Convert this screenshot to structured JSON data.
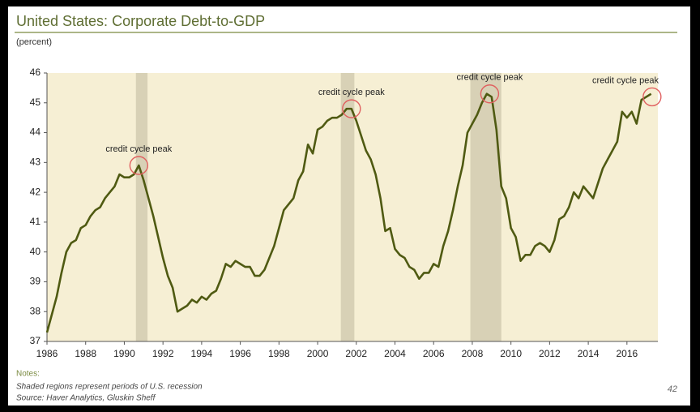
{
  "chart_data": {
    "type": "line",
    "title": "United States: Corporate Debt-to-GDP",
    "y_label": "(percent)",
    "xlim": [
      1986,
      2017.6
    ],
    "xticks": [
      1986,
      1988,
      1990,
      1992,
      1994,
      1996,
      1998,
      2000,
      2002,
      2004,
      2006,
      2008,
      2010,
      2012,
      2014,
      2016
    ],
    "ylim": [
      37,
      46
    ],
    "yticks": [
      37,
      38,
      39,
      40,
      41,
      42,
      43,
      44,
      45,
      46
    ],
    "recessions": [
      [
        1990.6,
        1991.2
      ],
      [
        2001.2,
        2001.9
      ],
      [
        2007.9,
        2009.5
      ]
    ],
    "series": [
      {
        "name": "Corporate Debt-to-GDP",
        "color": "#4f5a12",
        "x": [
          1986.0,
          1986.5,
          1986.75,
          1987.0,
          1987.25,
          1987.5,
          1987.75,
          1988.0,
          1988.25,
          1988.5,
          1988.75,
          1989.0,
          1989.25,
          1989.5,
          1989.75,
          1990.0,
          1990.25,
          1990.5,
          1990.75,
          1991.0,
          1991.25,
          1991.5,
          1991.75,
          1992.0,
          1992.25,
          1992.5,
          1992.75,
          1993.0,
          1993.25,
          1993.5,
          1993.75,
          1994.0,
          1994.25,
          1994.5,
          1994.75,
          1995.0,
          1995.25,
          1995.5,
          1995.75,
          1996.0,
          1996.25,
          1996.5,
          1996.75,
          1997.0,
          1997.25,
          1997.5,
          1997.75,
          1998.0,
          1998.25,
          1998.5,
          1998.75,
          1999.0,
          1999.25,
          1999.5,
          1999.75,
          2000.0,
          2000.25,
          2000.5,
          2000.75,
          2001.0,
          2001.25,
          2001.5,
          2001.75,
          2002.0,
          2002.25,
          2002.5,
          2002.75,
          2003.0,
          2003.25,
          2003.5,
          2003.75,
          2004.0,
          2004.25,
          2004.5,
          2004.75,
          2005.0,
          2005.25,
          2005.5,
          2005.75,
          2006.0,
          2006.25,
          2006.5,
          2006.75,
          2007.0,
          2007.25,
          2007.5,
          2007.75,
          2008.0,
          2008.25,
          2008.5,
          2008.75,
          2009.0,
          2009.25,
          2009.5,
          2009.75,
          2010.0,
          2010.25,
          2010.5,
          2010.75,
          2011.0,
          2011.25,
          2011.5,
          2011.75,
          2012.0,
          2012.25,
          2012.5,
          2012.75,
          2013.0,
          2013.25,
          2013.5,
          2013.75,
          2014.0,
          2014.25,
          2014.5,
          2014.75,
          2015.0,
          2015.25,
          2015.5,
          2015.75,
          2016.0,
          2016.25,
          2016.5,
          2016.75,
          2017.0,
          2017.25
        ],
        "values": [
          37.3,
          38.5,
          39.3,
          40.0,
          40.3,
          40.4,
          40.8,
          40.9,
          41.2,
          41.4,
          41.5,
          41.8,
          42.0,
          42.2,
          42.6,
          42.5,
          42.5,
          42.6,
          42.9,
          42.4,
          41.8,
          41.2,
          40.5,
          39.8,
          39.2,
          38.8,
          38.0,
          38.1,
          38.2,
          38.4,
          38.3,
          38.5,
          38.4,
          38.6,
          38.7,
          39.1,
          39.6,
          39.5,
          39.7,
          39.6,
          39.5,
          39.5,
          39.2,
          39.2,
          39.4,
          39.8,
          40.2,
          40.8,
          41.4,
          41.6,
          41.8,
          42.4,
          42.7,
          43.6,
          43.3,
          44.1,
          44.2,
          44.4,
          44.5,
          44.5,
          44.6,
          44.8,
          44.8,
          44.4,
          43.9,
          43.4,
          43.1,
          42.6,
          41.8,
          40.7,
          40.8,
          40.1,
          39.9,
          39.8,
          39.5,
          39.4,
          39.1,
          39.3,
          39.3,
          39.6,
          39.5,
          40.2,
          40.7,
          41.4,
          42.2,
          42.9,
          44.0,
          44.3,
          44.6,
          45.0,
          45.3,
          45.2,
          44.1,
          42.2,
          41.8,
          40.8,
          40.5,
          39.7,
          39.9,
          39.9,
          40.2,
          40.3,
          40.2,
          40.0,
          40.4,
          41.1,
          41.2,
          41.5,
          42.0,
          41.8,
          42.2,
          42.0,
          41.8,
          42.3,
          42.8,
          43.1,
          43.4,
          43.7,
          44.7,
          44.5,
          44.7,
          44.3,
          45.1,
          45.2,
          45.3
        ]
      }
    ],
    "annotations": [
      {
        "text": "credit cycle peak",
        "x": 1990.75,
        "y": 42.9
      },
      {
        "text": "credit cycle peak",
        "x": 2001.75,
        "y": 44.8
      },
      {
        "text": "credit cycle peak",
        "x": 2008.9,
        "y": 45.3
      },
      {
        "text": "credit cycle peak",
        "x": 2017.3,
        "y": 45.2
      }
    ],
    "notes_heading": "Notes:",
    "notes": [
      "Shaded regions represent periods of U.S. recession",
      "Source: Haver Analytics, Gluskin Sheff"
    ],
    "page_number": "42"
  }
}
